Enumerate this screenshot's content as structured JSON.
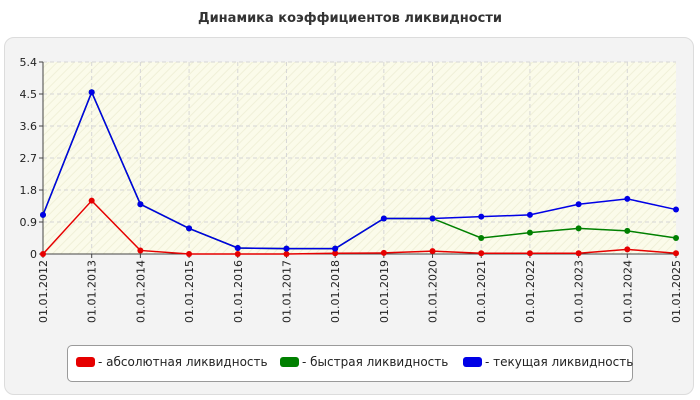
{
  "chart_data": {
    "type": "line",
    "title": "Динамика коэффициентов ликвидности",
    "categories": [
      "01.01.2012",
      "01.01.2013",
      "01.01.2014",
      "01.01.2015",
      "01.01.2016",
      "01.01.2017",
      "01.01.2018",
      "01.01.2019",
      "01.01.2020",
      "01.01.2021",
      "01.01.2022",
      "01.01.2023",
      "01.01.2024",
      "01.01.2025"
    ],
    "y_ticks": [
      "0",
      "0.9",
      "1.8",
      "2.7",
      "3.6",
      "4.5",
      "5.4"
    ],
    "ylim": [
      0,
      5.4
    ],
    "grid": true,
    "legend_position": "bottom",
    "series": [
      {
        "name": "- абсолютная ликвидность",
        "color": "#e60000",
        "values": [
          0.0,
          1.5,
          0.1,
          0.0,
          0.0,
          0.0,
          0.02,
          0.03,
          0.08,
          0.02,
          0.02,
          0.02,
          0.13,
          0.02
        ]
      },
      {
        "name": "- быстрая ликвидность",
        "color": "#008000",
        "values": [
          1.1,
          4.55,
          1.4,
          0.72,
          0.17,
          0.15,
          0.15,
          1.0,
          1.0,
          0.45,
          0.6,
          0.72,
          0.65,
          0.45
        ]
      },
      {
        "name": "- текущая ликвидность",
        "color": "#0000e6",
        "values": [
          1.1,
          4.55,
          1.4,
          0.72,
          0.17,
          0.15,
          0.15,
          1.0,
          1.0,
          1.05,
          1.1,
          1.4,
          1.55,
          1.25
        ]
      }
    ]
  }
}
